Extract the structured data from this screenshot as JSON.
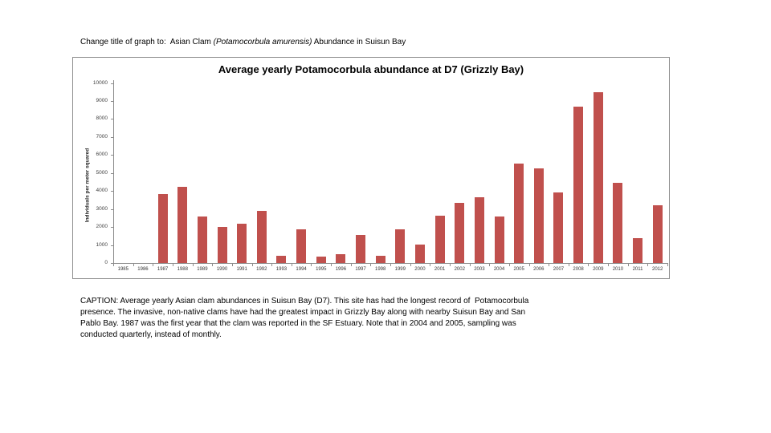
{
  "page": {
    "instruction": {
      "prefix": "Change title of graph to:  Asian Clam ",
      "italic": "(Potamocorbula amurensis)",
      "suffix": " Abundance in Suisun Bay"
    },
    "caption_lines": [
      "CAPTION: Average yearly Asian clam abundances in Suisun Bay (D7). This site has had the longest record of  Potamocorbula",
      "presence. The invasive, non-native clams have had the greatest impact in Grizzly Bay along with nearby Suisun Bay and San",
      "Pablo Bay. 1987 was the first year that the clam was reported in the SF Estuary. Note that in 2004 and 2005, sampling was",
      "conducted quarterly, instead of monthly."
    ]
  },
  "chart_data": {
    "type": "bar",
    "title": "Average yearly Potamocorbula abundance at D7 (Grizzly Bay)",
    "ylabel": "Individuals per meter squared",
    "xlabel": "",
    "ylim": [
      0,
      10000
    ],
    "ytick_step": 1000,
    "grid": false,
    "legend_position": "none",
    "bar_color": "#C0504D",
    "axis_color": "#8C8C8C",
    "categories": [
      "1985",
      "1986",
      "1987",
      "1988",
      "1989",
      "1990",
      "1991",
      "1992",
      "1993",
      "1994",
      "1995",
      "1996",
      "1997",
      "1998",
      "1999",
      "2000",
      "2001",
      "2002",
      "2003",
      "2004",
      "2005",
      "2006",
      "2007",
      "2008",
      "2009",
      "2010",
      "2011",
      "2012"
    ],
    "values": [
      0,
      0,
      3850,
      4250,
      2600,
      2000,
      2170,
      2880,
      410,
      1870,
      340,
      500,
      1560,
      410,
      1870,
      1020,
      2650,
      3330,
      3640,
      2570,
      5520,
      5250,
      3900,
      8700,
      9470,
      4450,
      1400,
      3210
    ]
  }
}
